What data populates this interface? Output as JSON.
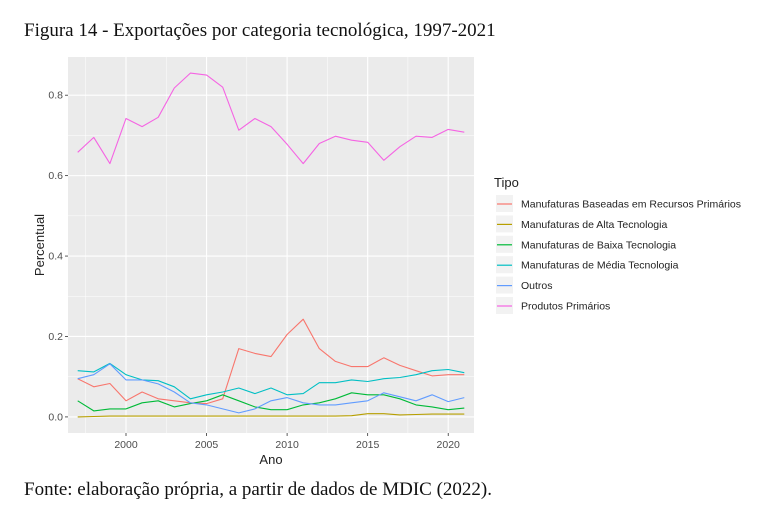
{
  "figure": {
    "title": "Figura 14 - Exportações por categoria tecnológica, 1997-2021",
    "source": "Fonte: elaboração própria, a partir de dados de MDIC (2022)."
  },
  "chart_data": {
    "type": "line",
    "title": "",
    "xlabel": "Ano",
    "ylabel": "Percentual",
    "xlim": [
      1996.4,
      2021.6
    ],
    "ylim": [
      -0.04,
      0.895
    ],
    "x_ticks": [
      2000,
      2005,
      2010,
      2015,
      2020
    ],
    "x_tick_labels": [
      "2000",
      "2005",
      "2010",
      "2015",
      "2020"
    ],
    "y_ticks": [
      0.0,
      0.2,
      0.4,
      0.6,
      0.8
    ],
    "y_tick_labels": [
      "0.0",
      "0.2",
      "0.4",
      "0.6",
      "0.8"
    ],
    "grid": true,
    "legend": {
      "title": "Tipo",
      "placement": "right"
    },
    "x": [
      1997,
      1998,
      1999,
      2000,
      2001,
      2002,
      2003,
      2004,
      2005,
      2006,
      2007,
      2008,
      2009,
      2010,
      2011,
      2012,
      2013,
      2014,
      2015,
      2016,
      2017,
      2018,
      2019,
      2020,
      2021
    ],
    "series": [
      {
        "name": "Manufaturas Baseadas em Recursos Primários",
        "color": "#F8766D",
        "values": [
          0.095,
          0.075,
          0.083,
          0.04,
          0.062,
          0.045,
          0.04,
          0.035,
          0.033,
          0.045,
          0.17,
          0.158,
          0.15,
          0.205,
          0.243,
          0.17,
          0.138,
          0.125,
          0.125,
          0.147,
          0.128,
          0.115,
          0.102,
          0.105,
          0.105
        ]
      },
      {
        "name": "Manufaturas de Alta Tecnologia",
        "color": "#B79F00",
        "values": [
          0.0,
          0.001,
          0.002,
          0.002,
          0.002,
          0.002,
          0.002,
          0.002,
          0.002,
          0.002,
          0.002,
          0.002,
          0.002,
          0.002,
          0.002,
          0.002,
          0.002,
          0.003,
          0.008,
          0.008,
          0.005,
          0.006,
          0.007,
          0.007,
          0.007
        ]
      },
      {
        "name": "Manufaturas de Baixa Tecnologia",
        "color": "#00BA38",
        "values": [
          0.04,
          0.015,
          0.02,
          0.02,
          0.035,
          0.04,
          0.025,
          0.033,
          0.04,
          0.055,
          0.04,
          0.025,
          0.018,
          0.018,
          0.03,
          0.035,
          0.045,
          0.06,
          0.055,
          0.055,
          0.045,
          0.03,
          0.025,
          0.018,
          0.022
        ]
      },
      {
        "name": "Manufaturas de Média Tecnologia",
        "color": "#00BFC4",
        "values": [
          0.115,
          0.112,
          0.133,
          0.105,
          0.092,
          0.09,
          0.075,
          0.045,
          0.055,
          0.062,
          0.072,
          0.058,
          0.072,
          0.055,
          0.058,
          0.085,
          0.085,
          0.092,
          0.088,
          0.095,
          0.098,
          0.105,
          0.115,
          0.118,
          0.11
        ]
      },
      {
        "name": "Outros",
        "color": "#619CFF",
        "values": [
          0.095,
          0.105,
          0.132,
          0.092,
          0.092,
          0.082,
          0.062,
          0.035,
          0.03,
          0.02,
          0.01,
          0.02,
          0.04,
          0.048,
          0.035,
          0.03,
          0.03,
          0.035,
          0.04,
          0.06,
          0.05,
          0.04,
          0.055,
          0.038,
          0.048
        ]
      },
      {
        "name": "Produtos Primários",
        "color": "#F564E3",
        "values": [
          0.658,
          0.695,
          0.63,
          0.742,
          0.722,
          0.745,
          0.818,
          0.855,
          0.85,
          0.82,
          0.713,
          0.742,
          0.722,
          0.678,
          0.63,
          0.68,
          0.698,
          0.688,
          0.683,
          0.638,
          0.672,
          0.698,
          0.695,
          0.715,
          0.708
        ]
      }
    ]
  }
}
